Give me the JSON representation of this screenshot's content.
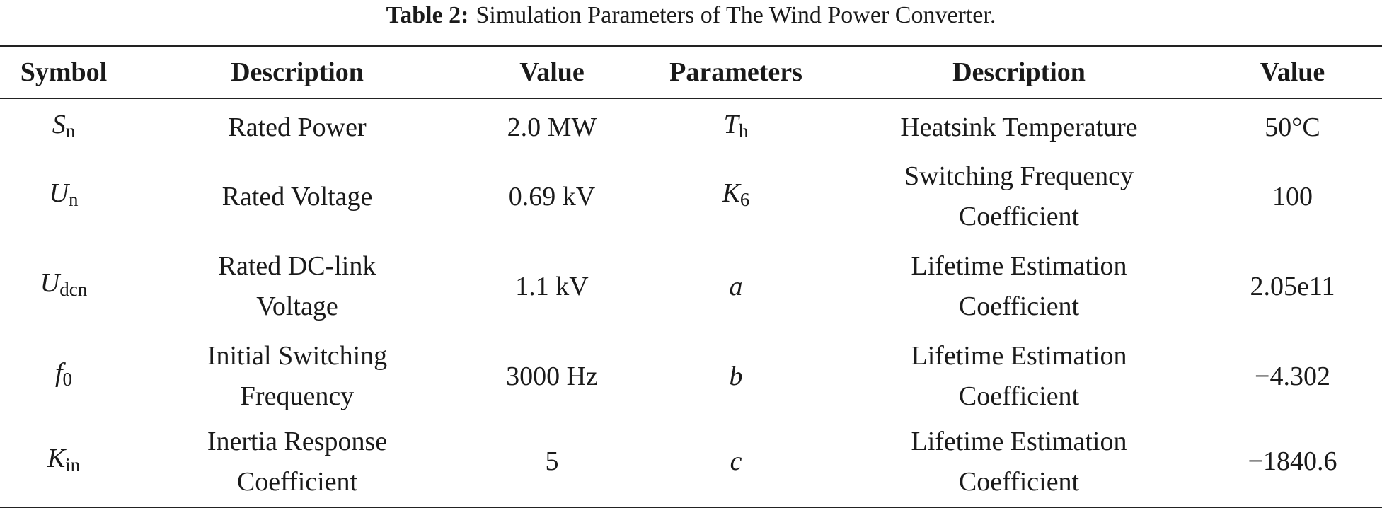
{
  "caption": {
    "label": "Table 2:",
    "text": "Simulation Parameters of The Wind Power Converter."
  },
  "table": {
    "header": [
      "Symbol",
      "Description",
      "Value",
      "Parameters",
      "Description",
      "Value"
    ],
    "rows": [
      [
        {
          "main": "S",
          "sub": "n"
        },
        [
          "Rated Power"
        ],
        "2.0 MW",
        {
          "main": "T",
          "sub": "h"
        },
        [
          "Heatsink Temperature"
        ],
        "50°C"
      ],
      [
        {
          "main": "U",
          "sub": "n"
        },
        [
          "Rated Voltage"
        ],
        "0.69 kV",
        {
          "main": "K",
          "sub": "6"
        },
        [
          "Switching Frequency",
          "Coefficient"
        ],
        "100"
      ],
      [
        {
          "main": "U",
          "sub": "dcn"
        },
        [
          "Rated DC-link",
          "Voltage"
        ],
        "1.1 kV",
        {
          "main": "a"
        },
        [
          "Lifetime Estimation",
          "Coefficient"
        ],
        "2.05e11"
      ],
      [
        {
          "main": "f",
          "sub": "0"
        },
        [
          "Initial Switching",
          "Frequency"
        ],
        "3000 Hz",
        {
          "main": "b"
        },
        [
          "Lifetime Estimation",
          "Coefficient"
        ],
        "−4.302"
      ],
      [
        {
          "main": "K",
          "sub": "in"
        },
        [
          "Inertia Response",
          "Coefficient"
        ],
        "5",
        {
          "main": "c"
        },
        [
          "Lifetime Estimation",
          "Coefficient"
        ],
        "−1840.6"
      ]
    ]
  }
}
